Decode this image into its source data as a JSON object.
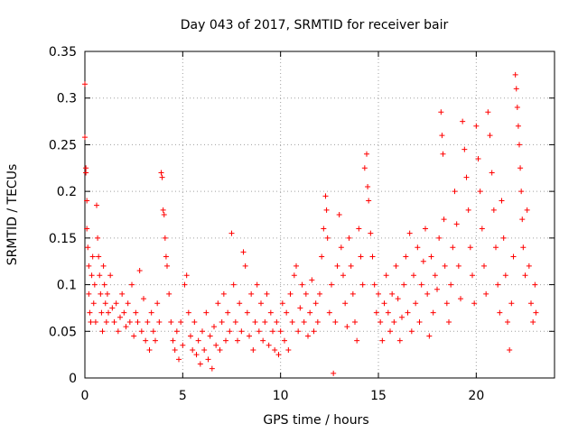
{
  "chart_data": {
    "type": "scatter",
    "title": "Day 043 of 2017, SRMTID for receiver bair",
    "xlabel": "GPS time / hours",
    "ylabel": "SRMTID / TECUs",
    "xlim": [
      0,
      24
    ],
    "ylim": [
      0,
      0.35
    ],
    "xticks": [
      "0",
      "5",
      "10",
      "15",
      "20"
    ],
    "yticks": [
      "0",
      "0.05",
      "0.1",
      "0.15",
      "0.2",
      "0.25",
      "0.3",
      "0.35"
    ],
    "grid": true,
    "marker": "+",
    "series_color": "#ff0000",
    "series": [
      {
        "name": "SRMTID",
        "points": [
          [
            0.0,
            0.315
          ],
          [
            0.0,
            0.258
          ],
          [
            0.05,
            0.225
          ],
          [
            0.05,
            0.22
          ],
          [
            0.1,
            0.19
          ],
          [
            0.1,
            0.16
          ],
          [
            0.15,
            0.14
          ],
          [
            0.2,
            0.12
          ],
          [
            0.2,
            0.09
          ],
          [
            0.25,
            0.07
          ],
          [
            0.3,
            0.06
          ],
          [
            0.35,
            0.11
          ],
          [
            0.4,
            0.13
          ],
          [
            0.45,
            0.08
          ],
          [
            0.5,
            0.1
          ],
          [
            0.55,
            0.06
          ],
          [
            0.6,
            0.185
          ],
          [
            0.65,
            0.15
          ],
          [
            0.7,
            0.13
          ],
          [
            0.75,
            0.11
          ],
          [
            0.8,
            0.09
          ],
          [
            0.85,
            0.07
          ],
          [
            0.9,
            0.05
          ],
          [
            0.95,
            0.12
          ],
          [
            1.0,
            0.1
          ],
          [
            1.05,
            0.08
          ],
          [
            1.1,
            0.06
          ],
          [
            1.15,
            0.09
          ],
          [
            1.2,
            0.07
          ],
          [
            1.3,
            0.11
          ],
          [
            1.4,
            0.075
          ],
          [
            1.5,
            0.06
          ],
          [
            1.6,
            0.08
          ],
          [
            1.7,
            0.05
          ],
          [
            1.8,
            0.065
          ],
          [
            1.9,
            0.09
          ],
          [
            2.0,
            0.07
          ],
          [
            2.1,
            0.055
          ],
          [
            2.2,
            0.08
          ],
          [
            2.3,
            0.06
          ],
          [
            2.4,
            0.1
          ],
          [
            2.5,
            0.045
          ],
          [
            2.6,
            0.07
          ],
          [
            2.7,
            0.06
          ],
          [
            2.8,
            0.115
          ],
          [
            2.9,
            0.05
          ],
          [
            3.0,
            0.085
          ],
          [
            3.1,
            0.04
          ],
          [
            3.2,
            0.06
          ],
          [
            3.3,
            0.03
          ],
          [
            3.4,
            0.07
          ],
          [
            3.5,
            0.05
          ],
          [
            3.6,
            0.04
          ],
          [
            3.7,
            0.08
          ],
          [
            3.8,
            0.06
          ],
          [
            3.9,
            0.22
          ],
          [
            3.95,
            0.215
          ],
          [
            4.0,
            0.18
          ],
          [
            4.05,
            0.175
          ],
          [
            4.1,
            0.15
          ],
          [
            4.15,
            0.13
          ],
          [
            4.2,
            0.12
          ],
          [
            4.3,
            0.09
          ],
          [
            4.4,
            0.06
          ],
          [
            4.5,
            0.04
          ],
          [
            4.6,
            0.03
          ],
          [
            4.7,
            0.05
          ],
          [
            4.8,
            0.02
          ],
          [
            4.9,
            0.06
          ],
          [
            5.0,
            0.035
          ],
          [
            5.1,
            0.1
          ],
          [
            5.2,
            0.11
          ],
          [
            5.3,
            0.07
          ],
          [
            5.4,
            0.045
          ],
          [
            5.5,
            0.03
          ],
          [
            5.6,
            0.06
          ],
          [
            5.7,
            0.025
          ],
          [
            5.8,
            0.04
          ],
          [
            5.9,
            0.015
          ],
          [
            6.0,
            0.05
          ],
          [
            6.1,
            0.03
          ],
          [
            6.2,
            0.07
          ],
          [
            6.3,
            0.02
          ],
          [
            6.4,
            0.045
          ],
          [
            6.5,
            0.01
          ],
          [
            6.6,
            0.055
          ],
          [
            6.7,
            0.035
          ],
          [
            6.8,
            0.08
          ],
          [
            6.9,
            0.03
          ],
          [
            7.0,
            0.06
          ],
          [
            7.1,
            0.09
          ],
          [
            7.2,
            0.04
          ],
          [
            7.3,
            0.07
          ],
          [
            7.4,
            0.05
          ],
          [
            7.5,
            0.155
          ],
          [
            7.6,
            0.1
          ],
          [
            7.7,
            0.06
          ],
          [
            7.8,
            0.04
          ],
          [
            7.9,
            0.08
          ],
          [
            8.0,
            0.05
          ],
          [
            8.1,
            0.135
          ],
          [
            8.2,
            0.12
          ],
          [
            8.3,
            0.07
          ],
          [
            8.4,
            0.045
          ],
          [
            8.5,
            0.09
          ],
          [
            8.6,
            0.03
          ],
          [
            8.7,
            0.06
          ],
          [
            8.8,
            0.1
          ],
          [
            8.9,
            0.05
          ],
          [
            9.0,
            0.08
          ],
          [
            9.1,
            0.04
          ],
          [
            9.2,
            0.06
          ],
          [
            9.3,
            0.09
          ],
          [
            9.4,
            0.035
          ],
          [
            9.5,
            0.07
          ],
          [
            9.6,
            0.05
          ],
          [
            9.7,
            0.03
          ],
          [
            9.8,
            0.06
          ],
          [
            9.9,
            0.025
          ],
          [
            10.0,
            0.05
          ],
          [
            10.1,
            0.08
          ],
          [
            10.2,
            0.04
          ],
          [
            10.3,
            0.07
          ],
          [
            10.4,
            0.03
          ],
          [
            10.5,
            0.09
          ],
          [
            10.6,
            0.06
          ],
          [
            10.7,
            0.11
          ],
          [
            10.8,
            0.12
          ],
          [
            10.9,
            0.05
          ],
          [
            11.0,
            0.075
          ],
          [
            11.1,
            0.1
          ],
          [
            11.2,
            0.06
          ],
          [
            11.3,
            0.09
          ],
          [
            11.4,
            0.045
          ],
          [
            11.5,
            0.07
          ],
          [
            11.6,
            0.105
          ],
          [
            11.7,
            0.05
          ],
          [
            11.8,
            0.08
          ],
          [
            11.9,
            0.06
          ],
          [
            12.0,
            0.09
          ],
          [
            12.1,
            0.13
          ],
          [
            12.2,
            0.16
          ],
          [
            12.3,
            0.195
          ],
          [
            12.35,
            0.18
          ],
          [
            12.4,
            0.15
          ],
          [
            12.5,
            0.07
          ],
          [
            12.6,
            0.1
          ],
          [
            12.7,
            0.005
          ],
          [
            12.8,
            0.06
          ],
          [
            12.9,
            0.12
          ],
          [
            13.0,
            0.175
          ],
          [
            13.1,
            0.14
          ],
          [
            13.2,
            0.11
          ],
          [
            13.3,
            0.08
          ],
          [
            13.4,
            0.055
          ],
          [
            13.5,
            0.15
          ],
          [
            13.6,
            0.12
          ],
          [
            13.7,
            0.09
          ],
          [
            13.8,
            0.06
          ],
          [
            13.9,
            0.04
          ],
          [
            14.0,
            0.16
          ],
          [
            14.1,
            0.13
          ],
          [
            14.2,
            0.1
          ],
          [
            14.3,
            0.225
          ],
          [
            14.4,
            0.24
          ],
          [
            14.45,
            0.205
          ],
          [
            14.5,
            0.19
          ],
          [
            14.6,
            0.155
          ],
          [
            14.7,
            0.13
          ],
          [
            14.8,
            0.1
          ],
          [
            14.9,
            0.07
          ],
          [
            15.0,
            0.09
          ],
          [
            15.1,
            0.06
          ],
          [
            15.2,
            0.04
          ],
          [
            15.3,
            0.08
          ],
          [
            15.4,
            0.11
          ],
          [
            15.5,
            0.07
          ],
          [
            15.6,
            0.05
          ],
          [
            15.7,
            0.09
          ],
          [
            15.8,
            0.06
          ],
          [
            15.9,
            0.12
          ],
          [
            16.0,
            0.085
          ],
          [
            16.1,
            0.04
          ],
          [
            16.2,
            0.065
          ],
          [
            16.3,
            0.1
          ],
          [
            16.4,
            0.13
          ],
          [
            16.5,
            0.07
          ],
          [
            16.6,
            0.155
          ],
          [
            16.7,
            0.05
          ],
          [
            16.8,
            0.11
          ],
          [
            16.9,
            0.08
          ],
          [
            17.0,
            0.14
          ],
          [
            17.1,
            0.06
          ],
          [
            17.2,
            0.1
          ],
          [
            17.3,
            0.125
          ],
          [
            17.4,
            0.16
          ],
          [
            17.5,
            0.09
          ],
          [
            17.6,
            0.045
          ],
          [
            17.7,
            0.13
          ],
          [
            17.8,
            0.07
          ],
          [
            17.9,
            0.11
          ],
          [
            18.0,
            0.095
          ],
          [
            18.1,
            0.15
          ],
          [
            18.2,
            0.285
          ],
          [
            18.25,
            0.26
          ],
          [
            18.3,
            0.24
          ],
          [
            18.35,
            0.17
          ],
          [
            18.4,
            0.12
          ],
          [
            18.5,
            0.08
          ],
          [
            18.6,
            0.06
          ],
          [
            18.7,
            0.1
          ],
          [
            18.8,
            0.14
          ],
          [
            18.9,
            0.2
          ],
          [
            19.0,
            0.165
          ],
          [
            19.1,
            0.12
          ],
          [
            19.2,
            0.085
          ],
          [
            19.3,
            0.275
          ],
          [
            19.4,
            0.245
          ],
          [
            19.5,
            0.215
          ],
          [
            19.6,
            0.18
          ],
          [
            19.7,
            0.14
          ],
          [
            19.8,
            0.11
          ],
          [
            19.9,
            0.08
          ],
          [
            20.0,
            0.27
          ],
          [
            20.1,
            0.235
          ],
          [
            20.2,
            0.2
          ],
          [
            20.3,
            0.16
          ],
          [
            20.4,
            0.12
          ],
          [
            20.5,
            0.09
          ],
          [
            20.6,
            0.285
          ],
          [
            20.7,
            0.26
          ],
          [
            20.8,
            0.22
          ],
          [
            20.9,
            0.18
          ],
          [
            21.0,
            0.14
          ],
          [
            21.1,
            0.1
          ],
          [
            21.2,
            0.07
          ],
          [
            21.3,
            0.19
          ],
          [
            21.4,
            0.15
          ],
          [
            21.5,
            0.11
          ],
          [
            21.6,
            0.06
          ],
          [
            21.7,
            0.03
          ],
          [
            21.8,
            0.08
          ],
          [
            21.9,
            0.13
          ],
          [
            22.0,
            0.325
          ],
          [
            22.05,
            0.31
          ],
          [
            22.1,
            0.29
          ],
          [
            22.15,
            0.27
          ],
          [
            22.2,
            0.25
          ],
          [
            22.25,
            0.225
          ],
          [
            22.3,
            0.2
          ],
          [
            22.35,
            0.17
          ],
          [
            22.4,
            0.14
          ],
          [
            22.5,
            0.11
          ],
          [
            22.6,
            0.18
          ],
          [
            22.7,
            0.12
          ],
          [
            22.8,
            0.08
          ],
          [
            22.9,
            0.06
          ],
          [
            23.0,
            0.1
          ],
          [
            23.05,
            0.07
          ]
        ]
      }
    ]
  }
}
